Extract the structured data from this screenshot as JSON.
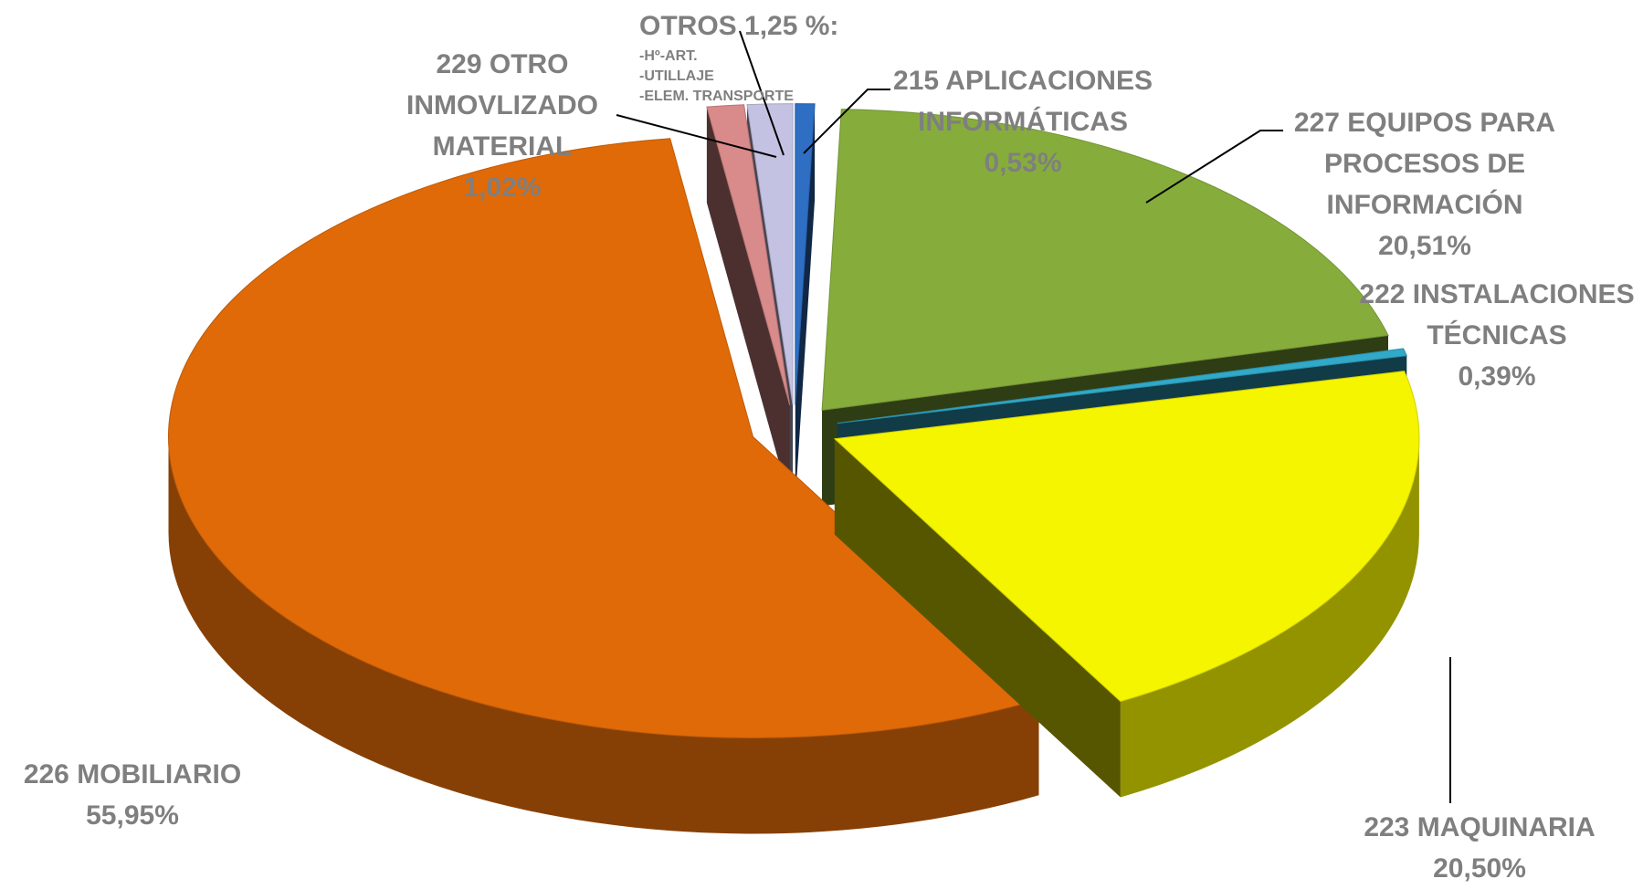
{
  "chart_data": {
    "type": "pie3d",
    "categories": [
      "215 APLICACIONES INFORMÁTICAS",
      "227 EQUIPOS PARA PROCESOS DE INFORMACIÓN",
      "222 INSTALACIONES TÉCNICAS",
      "223 MAQUINARIA",
      "226 MOBILIARIO",
      "229 OTRO INMOVLIZADO MATERIAL",
      "OTROS"
    ],
    "values": [
      0.53,
      20.51,
      0.39,
      20.5,
      55.95,
      1.02,
      1.25
    ],
    "value_labels": [
      "0,53%",
      "20,51%",
      "0,39%",
      "20,50%",
      "55,95%",
      "1,02%",
      "1,25 %:"
    ],
    "colors": [
      "#2e6fc4",
      "#86ad3c",
      "#31a9c9",
      "#f5f500",
      "#e06a08",
      "#d98a8a",
      "#c4c2e2"
    ],
    "otros_items": [
      "-Hº-ART.",
      "-UTILLAJE",
      "-ELEM. TRANSPORTE"
    ]
  }
}
